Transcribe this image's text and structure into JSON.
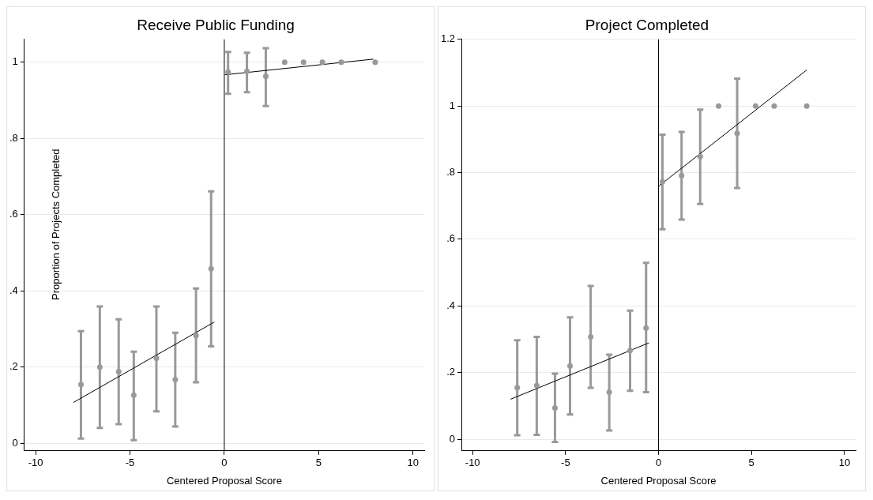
{
  "chart_data": [
    {
      "type": "scatter",
      "title": "Receive Public Funding",
      "xlabel": "Centered Proposal Score",
      "ylabel": "Proportion of Projects Completed",
      "xlim": [
        -10.6,
        10.6
      ],
      "xticks": [
        -10,
        -5,
        0,
        5,
        10
      ],
      "ylim": [
        -0.02,
        1.06
      ],
      "yticks": [
        0,
        {
          "value": 0.2,
          "label": ".2"
        },
        {
          "value": 0.4,
          "label": ".4"
        },
        {
          "value": 0.6,
          "label": ".6"
        },
        {
          "value": 0.8,
          "label": ".8"
        },
        1
      ],
      "grid": "y",
      "legend": false,
      "ref_lines": [
        {
          "axis": "x",
          "value": 0,
          "color": "#000000"
        }
      ],
      "series": [
        {
          "type": "scatter",
          "color": "#999999",
          "marker": "circle",
          "x": [
            -7.6,
            -6.6,
            -5.6,
            -4.8,
            -3.6,
            -2.6,
            -1.5,
            -0.7,
            0.2,
            1.2,
            2.2,
            3.2,
            4.2,
            5.2,
            6.2,
            8.0
          ],
          "values": [
            0.154,
            0.2,
            0.188,
            0.126,
            0.223,
            0.167,
            0.283,
            0.458,
            0.974,
            0.976,
            0.963,
            1,
            1,
            1,
            1,
            1
          ],
          "errors": [
            [
              0.012,
              0.294
            ],
            [
              0.04,
              0.359
            ],
            [
              0.05,
              0.325
            ],
            [
              0.008,
              0.24
            ],
            [
              0.084,
              0.359
            ],
            [
              0.044,
              0.29
            ],
            [
              0.16,
              0.406
            ],
            [
              0.254,
              0.661
            ],
            [
              0.917,
              1.027
            ],
            [
              0.921,
              1.025
            ],
            [
              0.885,
              1.037
            ],
            null,
            null,
            null,
            null,
            null
          ]
        },
        {
          "type": "line",
          "color": "#000000",
          "marker": "none",
          "x": [
            -8.0,
            -0.53
          ],
          "values": [
            0.107,
            0.318
          ]
        },
        {
          "type": "line",
          "color": "#000000",
          "marker": "none",
          "x": [
            0.03,
            7.9
          ],
          "values": [
            0.967,
            1.008
          ]
        }
      ]
    },
    {
      "type": "scatter",
      "title": "Project Completed",
      "xlabel": "Centered Proposal Score",
      "xlim": [
        -10.6,
        10.6
      ],
      "xticks": [
        -10,
        -5,
        0,
        5,
        10
      ],
      "ylim": [
        -0.035,
        1.2
      ],
      "yticks": [
        0,
        {
          "value": 0.2,
          "label": ".2"
        },
        {
          "value": 0.4,
          "label": ".4"
        },
        {
          "value": 0.6,
          "label": ".6"
        },
        {
          "value": 0.8,
          "label": ".8"
        },
        1,
        1.2
      ],
      "grid": "y",
      "legend": false,
      "ref_lines": [
        {
          "axis": "x",
          "value": 0,
          "color": "#000000"
        }
      ],
      "series": [
        {
          "type": "scatter",
          "color": "#999999",
          "marker": "circle",
          "x": [
            -7.6,
            -6.55,
            -5.57,
            -4.76,
            -3.65,
            -2.65,
            -1.53,
            -0.67,
            0.21,
            1.24,
            2.24,
            3.23,
            4.23,
            5.22,
            6.22,
            7.97
          ],
          "values": [
            0.155,
            0.161,
            0.094,
            0.22,
            0.307,
            0.141,
            0.266,
            0.334,
            0.773,
            0.791,
            0.848,
            1,
            0.918,
            1,
            1,
            1
          ],
          "errors": [
            [
              0.012,
              0.297
            ],
            [
              0.013,
              0.307
            ],
            [
              -0.008,
              0.197
            ],
            [
              0.074,
              0.366
            ],
            [
              0.154,
              0.46
            ],
            [
              0.026,
              0.254
            ],
            [
              0.145,
              0.386
            ],
            [
              0.141,
              0.529
            ],
            [
              0.63,
              0.914
            ],
            [
              0.659,
              0.922
            ],
            [
              0.706,
              0.989
            ],
            null,
            [
              0.754,
              1.082
            ],
            null,
            null,
            null
          ]
        },
        {
          "type": "line",
          "color": "#000000",
          "marker": "none",
          "x": [
            -7.96,
            -0.52
          ],
          "values": [
            0.12,
            0.289
          ]
        },
        {
          "type": "line",
          "color": "#000000",
          "marker": "none",
          "x": [
            0,
            7.97
          ],
          "values": [
            0.759,
            1.108
          ]
        }
      ]
    }
  ]
}
